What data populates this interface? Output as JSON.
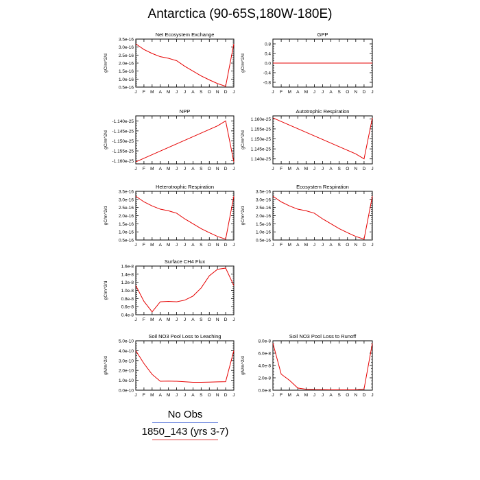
{
  "figure": {
    "title": "Antarctica (90-65S,180W-180E)",
    "legend": [
      {
        "label": "No Obs",
        "color": "#4a6bd6"
      },
      {
        "label": "1850_143 (yrs 3-7)",
        "color": "#e03030"
      }
    ]
  },
  "colors": {
    "series": "#e60000",
    "axis": "#000000"
  },
  "chart_data": [
    {
      "type": "line",
      "title": "Net Ecosystem Exchange",
      "ylabel": "gC/m^2/d",
      "x": [
        "J",
        "F",
        "M",
        "A",
        "M",
        "J",
        "J",
        "A",
        "S",
        "O",
        "N",
        "D",
        "J"
      ],
      "yticks": [
        "0.5e-16",
        "1.0e-16",
        "1.5e-16",
        "2.0e-16",
        "2.5e-16",
        "3.0e-16",
        "3.5e-16"
      ],
      "ylim": [
        5e-17,
        3.5e-16
      ],
      "series": [
        {
          "values": [
            3.2e-16,
            2.85e-16,
            2.6e-16,
            2.4e-16,
            2.3e-16,
            2.15e-16,
            1.8e-16,
            1.5e-16,
            1.2e-16,
            9.5e-17,
            7.2e-17,
            5.5e-17,
            3.2e-16
          ]
        }
      ]
    },
    {
      "type": "line",
      "title": "GPP",
      "ylabel": "gC/m^2/d",
      "x": [
        "J",
        "F",
        "M",
        "A",
        "M",
        "J",
        "J",
        "A",
        "S",
        "O",
        "N",
        "D",
        "J"
      ],
      "yticks": [
        "-0.8",
        "-0.4",
        "0.0",
        "0.4",
        "0.8"
      ],
      "ylim": [
        -1.0,
        1.0
      ],
      "series": [
        {
          "values": [
            0,
            0,
            0,
            0,
            0,
            0,
            0,
            0,
            0,
            0,
            0,
            0,
            0
          ]
        }
      ]
    },
    {
      "type": "line",
      "title": "NPP",
      "ylabel": "gC/m^2/d",
      "x": [
        "J",
        "F",
        "M",
        "A",
        "M",
        "J",
        "J",
        "A",
        "S",
        "O",
        "N",
        "D",
        "J"
      ],
      "yticks": [
        "-1.160e-25",
        "-1.155e-25",
        "-1.150e-25",
        "-1.145e-25",
        "-1.140e-25"
      ],
      "ylim": [
        -1.1615e-25,
        -1.1375e-25
      ],
      "series": [
        {
          "values": [
            -1.1605e-25,
            -1.1587e-25,
            -1.1569e-25,
            -1.1551e-25,
            -1.1533e-25,
            -1.1515e-25,
            -1.1497e-25,
            -1.1479e-25,
            -1.1461e-25,
            -1.1443e-25,
            -1.1425e-25,
            -1.14e-25,
            -1.1605e-25
          ]
        }
      ]
    },
    {
      "type": "line",
      "title": "Autotrophic Respiration",
      "ylabel": "gC/m^2/d",
      "x": [
        "J",
        "F",
        "M",
        "A",
        "M",
        "J",
        "J",
        "A",
        "S",
        "O",
        "N",
        "D",
        "J"
      ],
      "yticks": [
        "1.140e-25",
        "1.145e-25",
        "1.150e-25",
        "1.155e-25",
        "1.160e-25"
      ],
      "ylim": [
        1.1375e-25,
        1.1615e-25
      ],
      "series": [
        {
          "values": [
            1.1605e-25,
            1.1587e-25,
            1.1569e-25,
            1.1551e-25,
            1.1533e-25,
            1.1515e-25,
            1.1497e-25,
            1.1479e-25,
            1.1461e-25,
            1.1443e-25,
            1.1425e-25,
            1.14e-25,
            1.1605e-25
          ]
        }
      ]
    },
    {
      "type": "line",
      "title": "Heterotrophic Respiration",
      "ylabel": "gC/m^2/d",
      "x": [
        "J",
        "F",
        "M",
        "A",
        "M",
        "J",
        "J",
        "A",
        "S",
        "O",
        "N",
        "D",
        "J"
      ],
      "yticks": [
        "0.5e-16",
        "1.0e-16",
        "1.5e-16",
        "2.0e-16",
        "2.5e-16",
        "3.0e-16",
        "3.5e-16"
      ],
      "ylim": [
        5e-17,
        3.5e-16
      ],
      "series": [
        {
          "values": [
            3.2e-16,
            2.85e-16,
            2.6e-16,
            2.4e-16,
            2.3e-16,
            2.15e-16,
            1.8e-16,
            1.5e-16,
            1.2e-16,
            9.5e-17,
            7.2e-17,
            5.5e-17,
            3.2e-16
          ]
        }
      ]
    },
    {
      "type": "line",
      "title": "Ecosystem Respiration",
      "ylabel": "gC/m^2/d",
      "x": [
        "J",
        "F",
        "M",
        "A",
        "M",
        "J",
        "J",
        "A",
        "S",
        "O",
        "N",
        "D",
        "J"
      ],
      "yticks": [
        "0.5e-16",
        "1.0e-16",
        "1.5e-16",
        "2.0e-16",
        "2.5e-16",
        "3.0e-16",
        "3.5e-16"
      ],
      "ylim": [
        5e-17,
        3.5e-16
      ],
      "series": [
        {
          "values": [
            3.2e-16,
            2.85e-16,
            2.6e-16,
            2.4e-16,
            2.3e-16,
            2.15e-16,
            1.8e-16,
            1.5e-16,
            1.2e-16,
            9.5e-17,
            7.2e-17,
            5.5e-17,
            3.2e-16
          ]
        }
      ]
    },
    {
      "type": "line",
      "title": "Surface CH4 Flux",
      "ylabel": "gC/m^2/d",
      "x": [
        "J",
        "F",
        "M",
        "A",
        "M",
        "J",
        "J",
        "A",
        "S",
        "O",
        "N",
        "D",
        "J"
      ],
      "yticks": [
        "0.4e-8",
        "0.6e-8",
        "0.8e-8",
        "1.0e-8",
        "1.2e-8",
        "1.4e-8",
        "1.6e-8"
      ],
      "ylim": [
        4e-09,
        1.6e-08
      ],
      "series": [
        {
          "values": [
            1.12e-08,
            7.3e-09,
            4.7e-09,
            7.2e-09,
            7.3e-09,
            7.2e-09,
            7.6e-09,
            8.6e-09,
            1.06e-08,
            1.36e-08,
            1.52e-08,
            1.55e-08,
            1.12e-08
          ]
        }
      ]
    },
    {
      "type": "line",
      "title": "Soil NO3 Pool Loss to Leaching",
      "ylabel": "gN/m^2/d",
      "x": [
        "J",
        "F",
        "M",
        "A",
        "M",
        "J",
        "J",
        "A",
        "S",
        "O",
        "N",
        "D",
        "J"
      ],
      "yticks": [
        "0.0e-10",
        "1.0e-10",
        "2.0e-10",
        "3.0e-10",
        "4.0e-10",
        "5.0e-10"
      ],
      "ylim": [
        0,
        5e-10
      ],
      "series": [
        {
          "values": [
            4e-10,
            2.7e-10,
            1.6e-10,
            9e-11,
            9.2e-11,
            9e-11,
            8.5e-11,
            8e-11,
            8e-11,
            8.2e-11,
            8.4e-11,
            8.6e-11,
            4e-10
          ]
        }
      ]
    },
    {
      "type": "line",
      "title": "Soil NO3 Pool Loss to Runoff",
      "ylabel": "gN/m^2/d",
      "x": [
        "J",
        "F",
        "M",
        "A",
        "M",
        "J",
        "J",
        "A",
        "S",
        "O",
        "N",
        "D",
        "J"
      ],
      "yticks": [
        "0.0e-8",
        "2.0e-8",
        "4.0e-8",
        "6.0e-8",
        "8.0e-8"
      ],
      "ylim": [
        0,
        8e-08
      ],
      "series": [
        {
          "values": [
            7.6e-08,
            2.6e-08,
            1.6e-08,
            3.5e-09,
            1.5e-09,
            1e-09,
            8e-10,
            5e-10,
            5e-10,
            5e-10,
            5e-10,
            2e-09,
            7.6e-08
          ]
        }
      ]
    }
  ]
}
